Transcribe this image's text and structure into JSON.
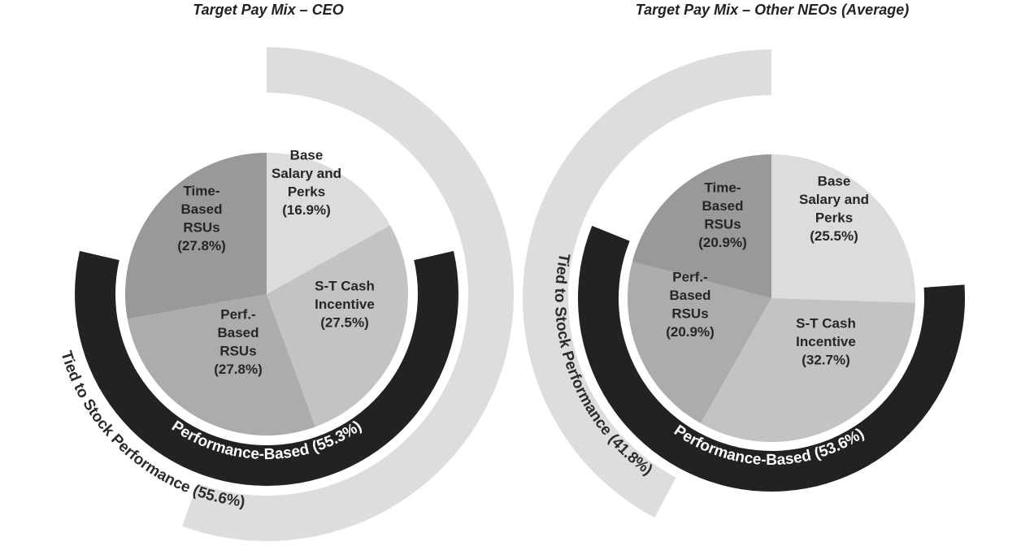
{
  "colors": {
    "base": "#dcdcdc",
    "cash": "#c3c3c3",
    "perf": "#acacac",
    "time": "#999999",
    "performance_band": "#222222",
    "stock_band": "#dddddd",
    "slice_text": "#262626",
    "performance_text": "#ffffff",
    "stock_text": "#2b2b2b"
  },
  "chart_data": [
    {
      "type": "pie",
      "title": "Target Pay Mix – CEO",
      "slices": [
        {
          "lines": [
            "Base",
            "Salary and",
            "Perks",
            "(16.9%)"
          ],
          "value": 16.9,
          "color_key": "base"
        },
        {
          "lines": [
            "S-T Cash",
            "Incentive",
            "(27.5%)"
          ],
          "value": 27.5,
          "color_key": "cash"
        },
        {
          "lines": [
            "Perf.-",
            "Based",
            "RSUs",
            "(27.8%)"
          ],
          "value": 27.8,
          "color_key": "perf"
        },
        {
          "lines": [
            "Time-",
            "Based",
            "RSUs",
            "(27.8%)"
          ],
          "value": 27.8,
          "color_key": "time"
        }
      ],
      "bands": [
        {
          "label": "Performance-Based (55.3%)",
          "value": 55.3,
          "style": "performance_band"
        },
        {
          "label": "Tied to Stock Performance (55.6%)",
          "value": 55.6,
          "style": "stock_band"
        }
      ]
    },
    {
      "type": "pie",
      "title": "Target Pay Mix – Other NEOs (Average)",
      "slices": [
        {
          "lines": [
            "Base",
            "Salary and",
            "Perks",
            "(25.5%)"
          ],
          "value": 25.5,
          "color_key": "base"
        },
        {
          "lines": [
            "S-T Cash",
            "Incentive",
            "(32.7%)"
          ],
          "value": 32.7,
          "color_key": "cash"
        },
        {
          "lines": [
            "Perf.-",
            "Based",
            "RSUs",
            "(20.9%)"
          ],
          "value": 20.9,
          "color_key": "perf"
        },
        {
          "lines": [
            "Time-",
            "Based",
            "RSUs",
            "(20.9%)"
          ],
          "value": 20.9,
          "color_key": "time"
        }
      ],
      "bands": [
        {
          "label": "Performance-Based (53.6%)",
          "value": 53.6,
          "style": "performance_band"
        },
        {
          "label": "Tied to Stock Performance (41.8%)",
          "value": 41.8,
          "style": "stock_band"
        }
      ]
    }
  ]
}
